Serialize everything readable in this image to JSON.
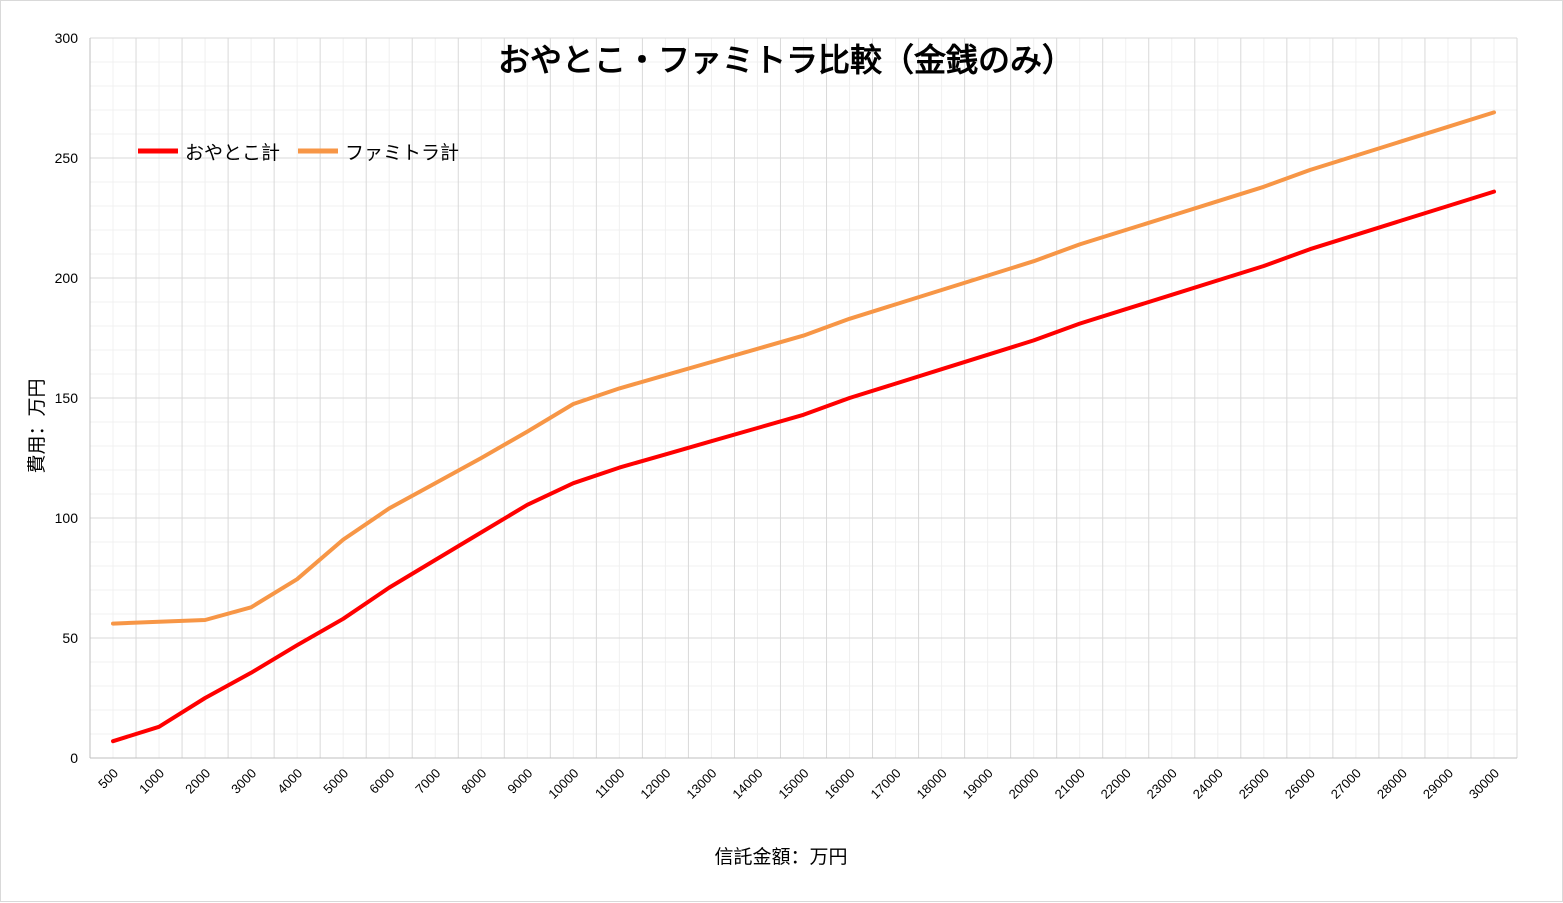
{
  "chart_data": {
    "type": "line",
    "title": "おやとこ・ファミトラ比較（金銭のみ）",
    "xlabel": "信託金額：万円",
    "ylabel": "費用：万円",
    "ylim": [
      0,
      300
    ],
    "yticks": [
      0,
      50,
      100,
      150,
      200,
      250,
      300
    ],
    "grid": true,
    "legend_position": "top-left",
    "categories": [
      "500",
      "1000",
      "2000",
      "3000",
      "4000",
      "5000",
      "6000",
      "7000",
      "8000",
      "9000",
      "10000",
      "11000",
      "12000",
      "13000",
      "14000",
      "15000",
      "16000",
      "17000",
      "18000",
      "19000",
      "20000",
      "21000",
      "22000",
      "23000",
      "24000",
      "25000",
      "26000",
      "27000",
      "28000",
      "29000",
      "30000"
    ],
    "series": [
      {
        "name": "おやとこ計",
        "color": "#ff0000",
        "values": [
          7,
          13,
          25,
          35.5,
          47,
          58,
          71,
          82.5,
          94,
          105.5,
          114.5,
          121,
          126.5,
          132,
          137.5,
          143,
          150,
          156,
          162,
          168,
          174,
          181,
          187,
          193,
          199,
          205,
          212,
          218,
          224,
          230,
          236
        ]
      },
      {
        "name": "ファミトラ計",
        "color": "#f79646",
        "values": [
          56,
          56.8,
          57.5,
          62.8,
          74.5,
          91,
          104,
          114.5,
          125,
          136,
          147.5,
          154,
          159.5,
          165,
          170.5,
          176,
          183,
          189,
          195,
          201,
          207,
          214,
          220,
          226,
          232,
          238,
          245,
          251,
          257,
          263,
          269
        ]
      }
    ]
  }
}
